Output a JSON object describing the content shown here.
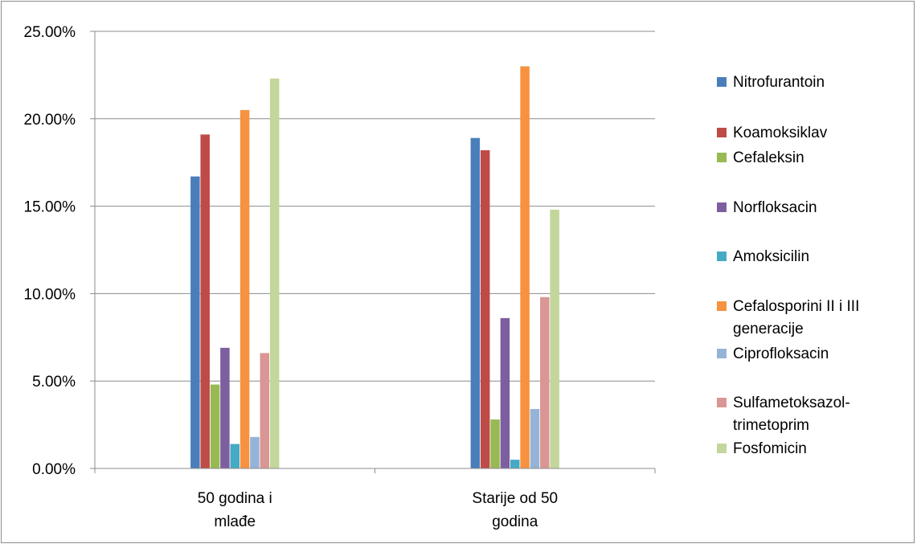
{
  "chart_data": {
    "type": "bar",
    "title": "",
    "xlabel": "",
    "ylabel": "",
    "ylim": [
      0,
      0.25
    ],
    "yticks": [
      "0.00%",
      "5.00%",
      "10.00%",
      "15.00%",
      "20.00%",
      "25.00%"
    ],
    "grid": true,
    "legend_position": "right",
    "categories": [
      [
        "50 godina i",
        "mlađe"
      ],
      [
        "Starije od 50",
        "godina"
      ]
    ],
    "series": [
      {
        "name": [
          "Nitrofurantoin"
        ],
        "color": "#4a7ebb",
        "values": [
          0.167,
          0.189
        ]
      },
      {
        "name": [
          "Koamoksiklav"
        ],
        "color": "#be4b48",
        "values": [
          0.191,
          0.182
        ]
      },
      {
        "name": [
          "Cefaleksin"
        ],
        "color": "#98b954",
        "values": [
          0.048,
          0.028
        ]
      },
      {
        "name": [
          "Norfloksacin"
        ],
        "color": "#7d5fa0",
        "values": [
          0.069,
          0.086
        ]
      },
      {
        "name": [
          "Amoksicilin"
        ],
        "color": "#46aac5",
        "values": [
          0.014,
          0.005
        ]
      },
      {
        "name": [
          "Cefalosporini II i III",
          "generacije"
        ],
        "color": "#f69240",
        "values": [
          0.205,
          0.23
        ]
      },
      {
        "name": [
          "Ciprofloksacin"
        ],
        "color": "#95b3d7",
        "values": [
          0.018,
          0.034
        ]
      },
      {
        "name": [
          "Sulfametoksazol-",
          "trimetoprim"
        ],
        "color": "#d99694",
        "values": [
          0.066,
          0.098
        ]
      },
      {
        "name": [
          "Fosfomicin"
        ],
        "color": "#c3d69b",
        "values": [
          0.223,
          0.148
        ]
      }
    ]
  }
}
